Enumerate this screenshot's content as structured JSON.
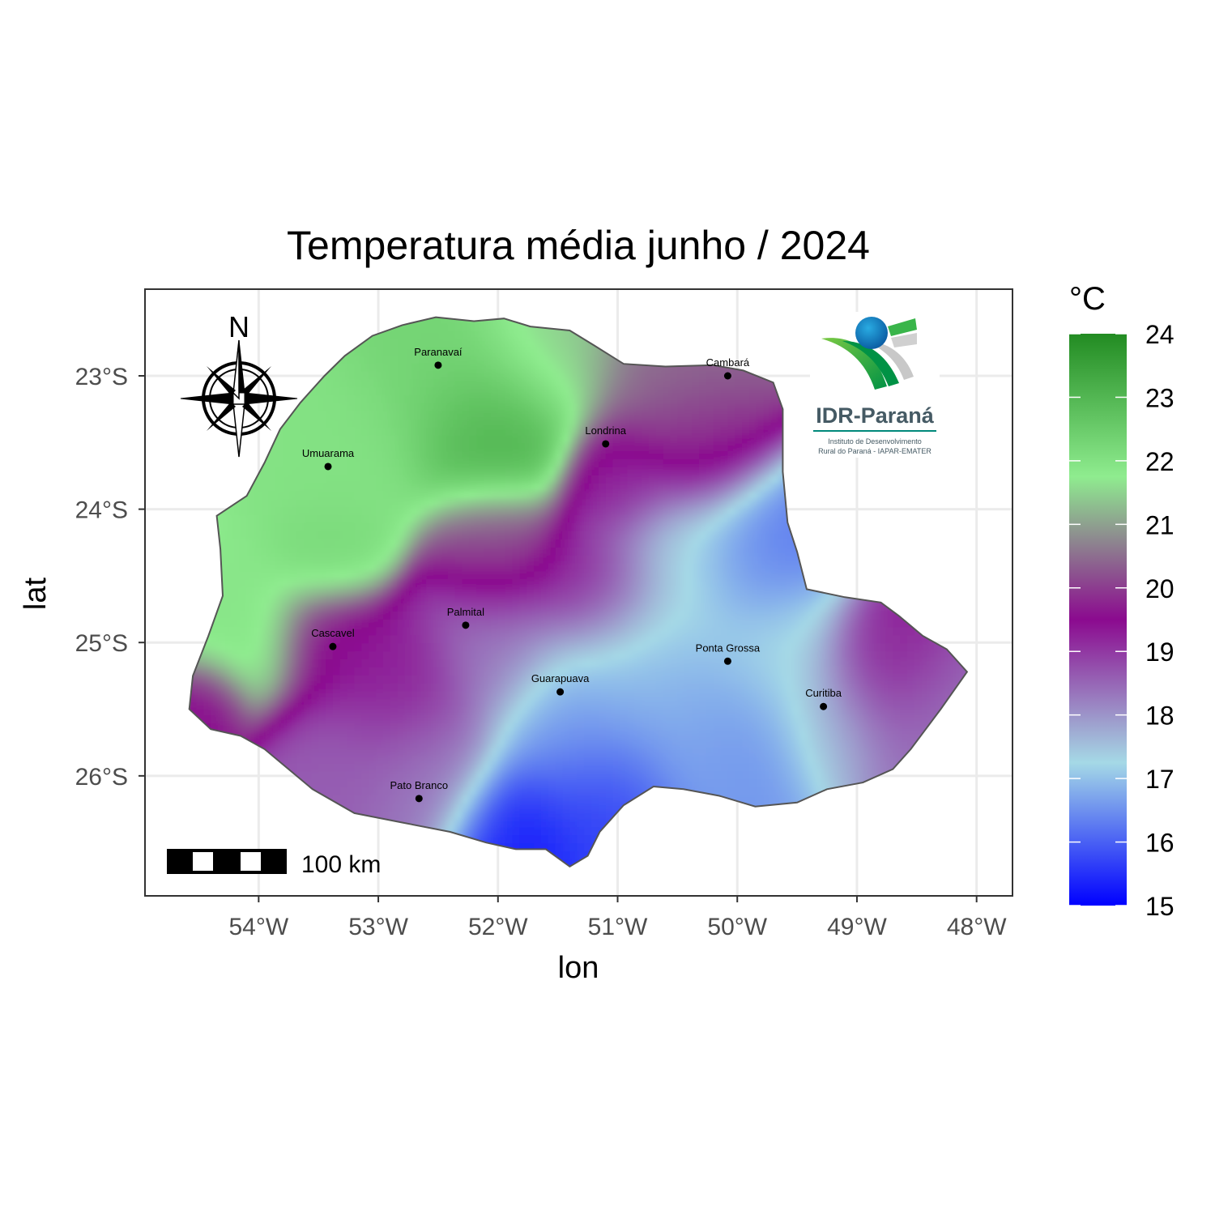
{
  "title": "Temperatura média junho / 2024",
  "x_axis": {
    "label": "lon",
    "ticks": [
      {
        "value": -54,
        "label": "54°W"
      },
      {
        "value": -53,
        "label": "53°W"
      },
      {
        "value": -52,
        "label": "52°W"
      },
      {
        "value": -51,
        "label": "51°W"
      },
      {
        "value": -50,
        "label": "50°W"
      },
      {
        "value": -49,
        "label": "49°W"
      },
      {
        "value": -48,
        "label": "48°W"
      }
    ],
    "range": [
      -54.95,
      -47.7
    ]
  },
  "y_axis": {
    "label": "lat",
    "ticks": [
      {
        "value": -23,
        "label": "23°S"
      },
      {
        "value": -24,
        "label": "24°S"
      },
      {
        "value": -25,
        "label": "25°S"
      },
      {
        "value": -26,
        "label": "26°S"
      }
    ],
    "range": [
      -26.9,
      -22.35
    ]
  },
  "legend": {
    "title": "°C",
    "min": 15,
    "max": 24,
    "labels": [
      "24",
      "23",
      "22",
      "21",
      "20",
      "19",
      "18",
      "17",
      "16",
      "15"
    ],
    "colors": [
      "#0000ff",
      "#a5d9e6",
      "#8b0a8f",
      "#8fec8f",
      "#228b22"
    ]
  },
  "cities": [
    {
      "name": "Paranavaí",
      "lon": -52.5,
      "lat": -22.92
    },
    {
      "name": "Cambará",
      "lon": -50.08,
      "lat": -23.0
    },
    {
      "name": "Londrina",
      "lon": -51.1,
      "lat": -23.51
    },
    {
      "name": "Umuarama",
      "lon": -53.42,
      "lat": -23.68
    },
    {
      "name": "Palmital",
      "lon": -52.27,
      "lat": -24.87
    },
    {
      "name": "Cascavel",
      "lon": -53.38,
      "lat": -25.03
    },
    {
      "name": "Ponta Grossa",
      "lon": -50.08,
      "lat": -25.14
    },
    {
      "name": "Guarapuava",
      "lon": -51.48,
      "lat": -25.37
    },
    {
      "name": "Curitiba",
      "lon": -49.28,
      "lat": -25.48
    },
    {
      "name": "Pato Branco",
      "lon": -52.66,
      "lat": -26.17
    }
  ],
  "scale_bar": {
    "label": "100 km"
  },
  "north_arrow": {
    "label": "N",
    "icon": "compass-rose-icon"
  },
  "logo": {
    "name": "IDR-Paraná",
    "line1": "Instituto de Desenvolvimento",
    "line2": "Rural do Paraná - IAPAR-EMATER"
  }
}
